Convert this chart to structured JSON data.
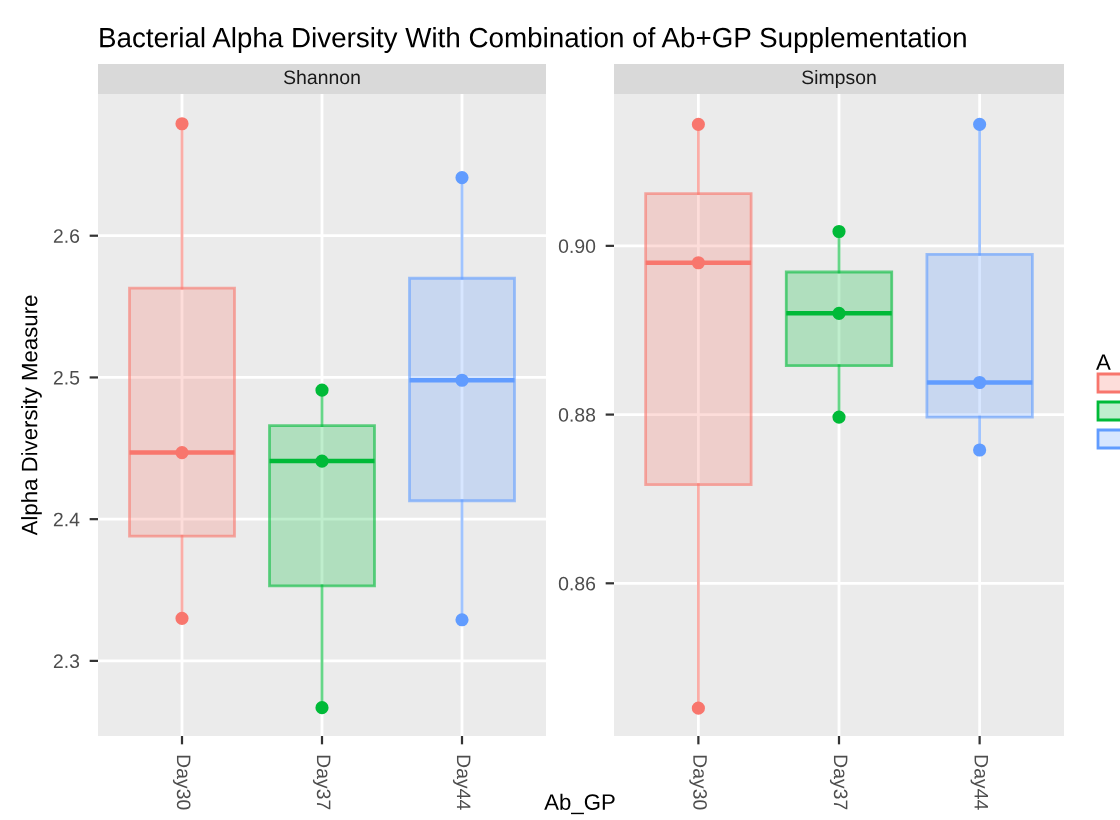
{
  "chart_data": [
    {
      "type": "box",
      "title": "Bacterial Alpha Diversity With Combination of Ab+GP Supplementation",
      "subtitle": "Shannon",
      "xlabel": "Ab_GP",
      "ylabel": "Alpha Diversity Measure",
      "categories": [
        "Day30",
        "Day37",
        "Day44"
      ],
      "colors": [
        "#f8766d",
        "#00ba38",
        "#619cff"
      ],
      "boxes": [
        {
          "low": 2.33,
          "q1": 2.388,
          "median": 2.447,
          "q3": 2.563,
          "high": 2.679
        },
        {
          "low": 2.267,
          "q1": 2.353,
          "median": 2.441,
          "q3": 2.466,
          "high": 2.491
        },
        {
          "low": 2.329,
          "q1": 2.413,
          "median": 2.498,
          "q3": 2.57,
          "high": 2.641
        }
      ],
      "series": [
        {
          "type": "scatter",
          "x": [
            "Day30",
            "Day30",
            "Day30"
          ],
          "values": [
            2.679,
            2.447,
            2.33
          ],
          "color": "#f8766d"
        },
        {
          "type": "scatter",
          "x": [
            "Day37",
            "Day37",
            "Day37"
          ],
          "values": [
            2.491,
            2.441,
            2.267
          ],
          "color": "#00ba38"
        },
        {
          "type": "scatter",
          "x": [
            "Day44",
            "Day44",
            "Day44"
          ],
          "values": [
            2.641,
            2.498,
            2.329
          ],
          "color": "#619cff"
        }
      ],
      "ylim": [
        2.247,
        2.7
      ],
      "yticks": [
        2.3,
        2.4,
        2.5,
        2.6
      ],
      "grid": true,
      "marker": "circle"
    },
    {
      "type": "box",
      "subtitle": "Simpson",
      "categories": [
        "Day30",
        "Day37",
        "Day44"
      ],
      "colors": [
        "#f8766d",
        "#00ba38",
        "#619cff"
      ],
      "boxes": [
        {
          "low": 0.8452,
          "q1": 0.8717,
          "median": 0.898,
          "q3": 0.9062,
          "high": 0.9144
        },
        {
          "low": 0.8797,
          "q1": 0.8858,
          "median": 0.892,
          "q3": 0.8969,
          "high": 0.9017
        },
        {
          "low": 0.8758,
          "q1": 0.8797,
          "median": 0.8838,
          "q3": 0.899,
          "high": 0.9144
        }
      ],
      "series": [
        {
          "type": "scatter",
          "x": [
            "Day30",
            "Day30",
            "Day30"
          ],
          "values": [
            0.9144,
            0.898,
            0.8452
          ],
          "color": "#f8766d"
        },
        {
          "type": "scatter",
          "x": [
            "Day37",
            "Day37",
            "Day37"
          ],
          "values": [
            0.9017,
            0.892,
            0.8797
          ],
          "color": "#00ba38"
        },
        {
          "type": "scatter",
          "x": [
            "Day44",
            "Day44",
            "Day44"
          ],
          "values": [
            0.9144,
            0.8838,
            0.8758
          ],
          "color": "#619cff"
        }
      ],
      "ylim": [
        0.8419,
        0.918
      ],
      "yticks": [
        {
          "value": 0.86,
          "label": "0.86"
        },
        {
          "value": 0.88,
          "label": "0.88"
        },
        {
          "value": 0.9,
          "label": "0.90"
        }
      ],
      "grid": true,
      "marker": "circle",
      "legend_title": "A"
    }
  ]
}
